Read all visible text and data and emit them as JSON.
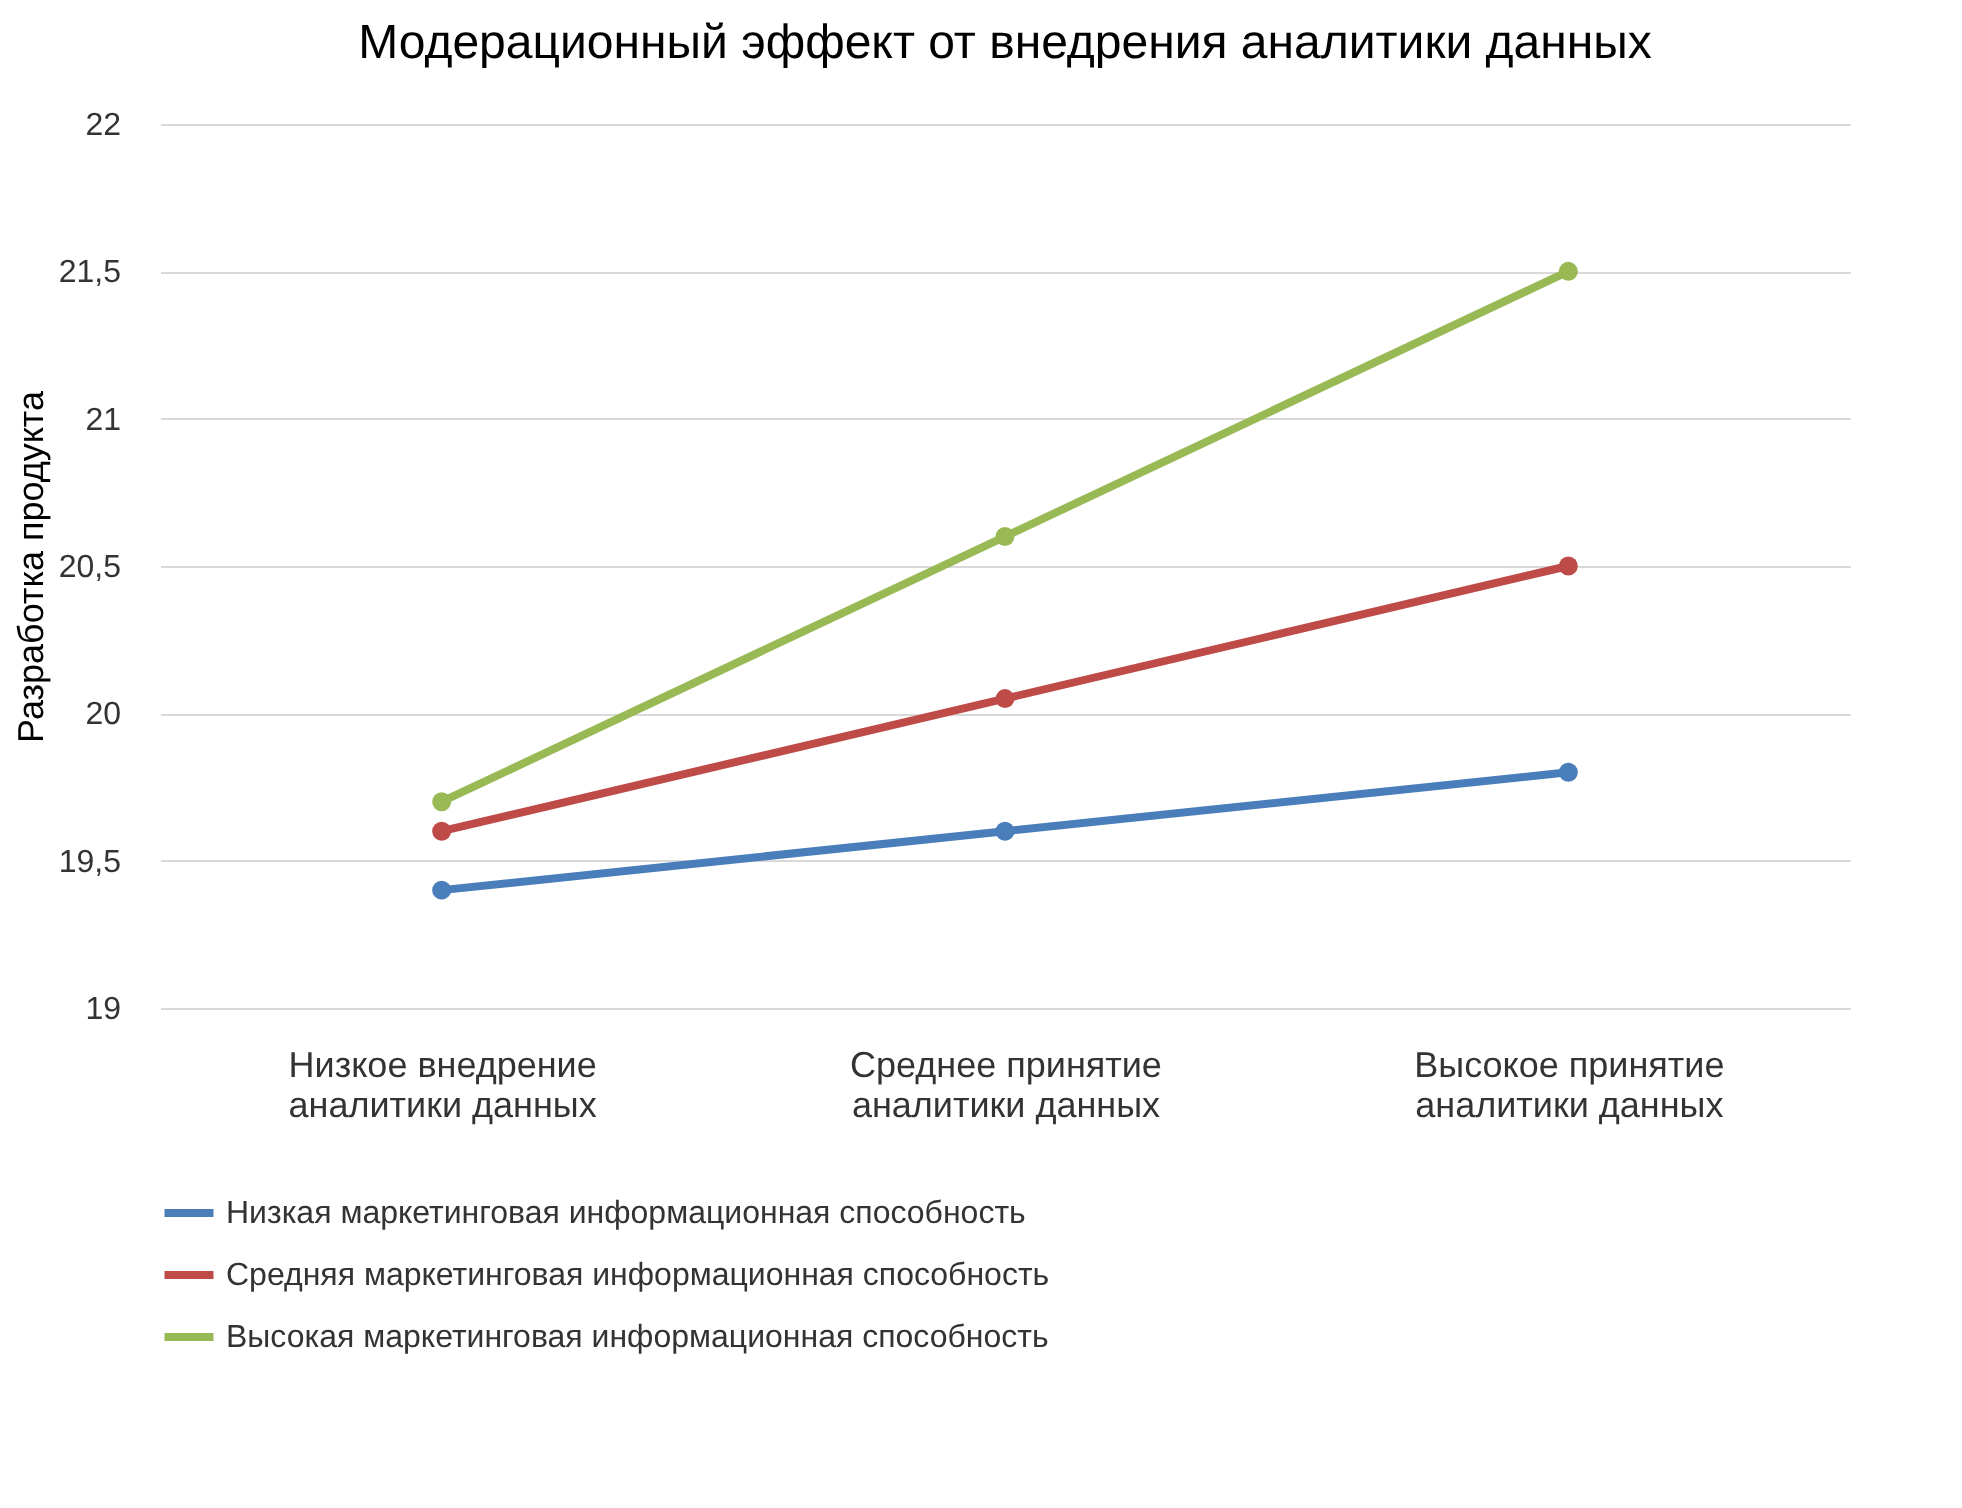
{
  "chart_data": {
    "type": "line",
    "title": "Модерационный эффект от внедрения аналитики данных",
    "ylabel": "Разработка продукта",
    "categories": [
      "Низкое внедрение аналитики данных",
      "Среднее принятие аналитики данных",
      "Высокое принятие аналитики данных"
    ],
    "series": [
      {
        "name": "Низкая маркетинговая информационная способность",
        "color": "#4a7ebb",
        "values": [
          19.4,
          19.6,
          19.8
        ]
      },
      {
        "name": "Средняя маркетинговая информационная способность",
        "color": "#be4b48",
        "values": [
          19.6,
          20.05,
          20.5
        ]
      },
      {
        "name": "Высокая маркетинговая информационная способность",
        "color": "#98b954",
        "values": [
          19.7,
          20.6,
          21.5
        ]
      }
    ],
    "ylim": [
      19,
      22
    ],
    "yticks": [
      19,
      {
        "value": 19.5,
        "label": "19,5"
      },
      20,
      {
        "value": 20.5,
        "label": "20,5"
      },
      21,
      {
        "value": 21.5,
        "label": "21,5"
      },
      22
    ],
    "grid": "y",
    "legend": "bottom",
    "marker": "circle",
    "line_style": "solid"
  }
}
